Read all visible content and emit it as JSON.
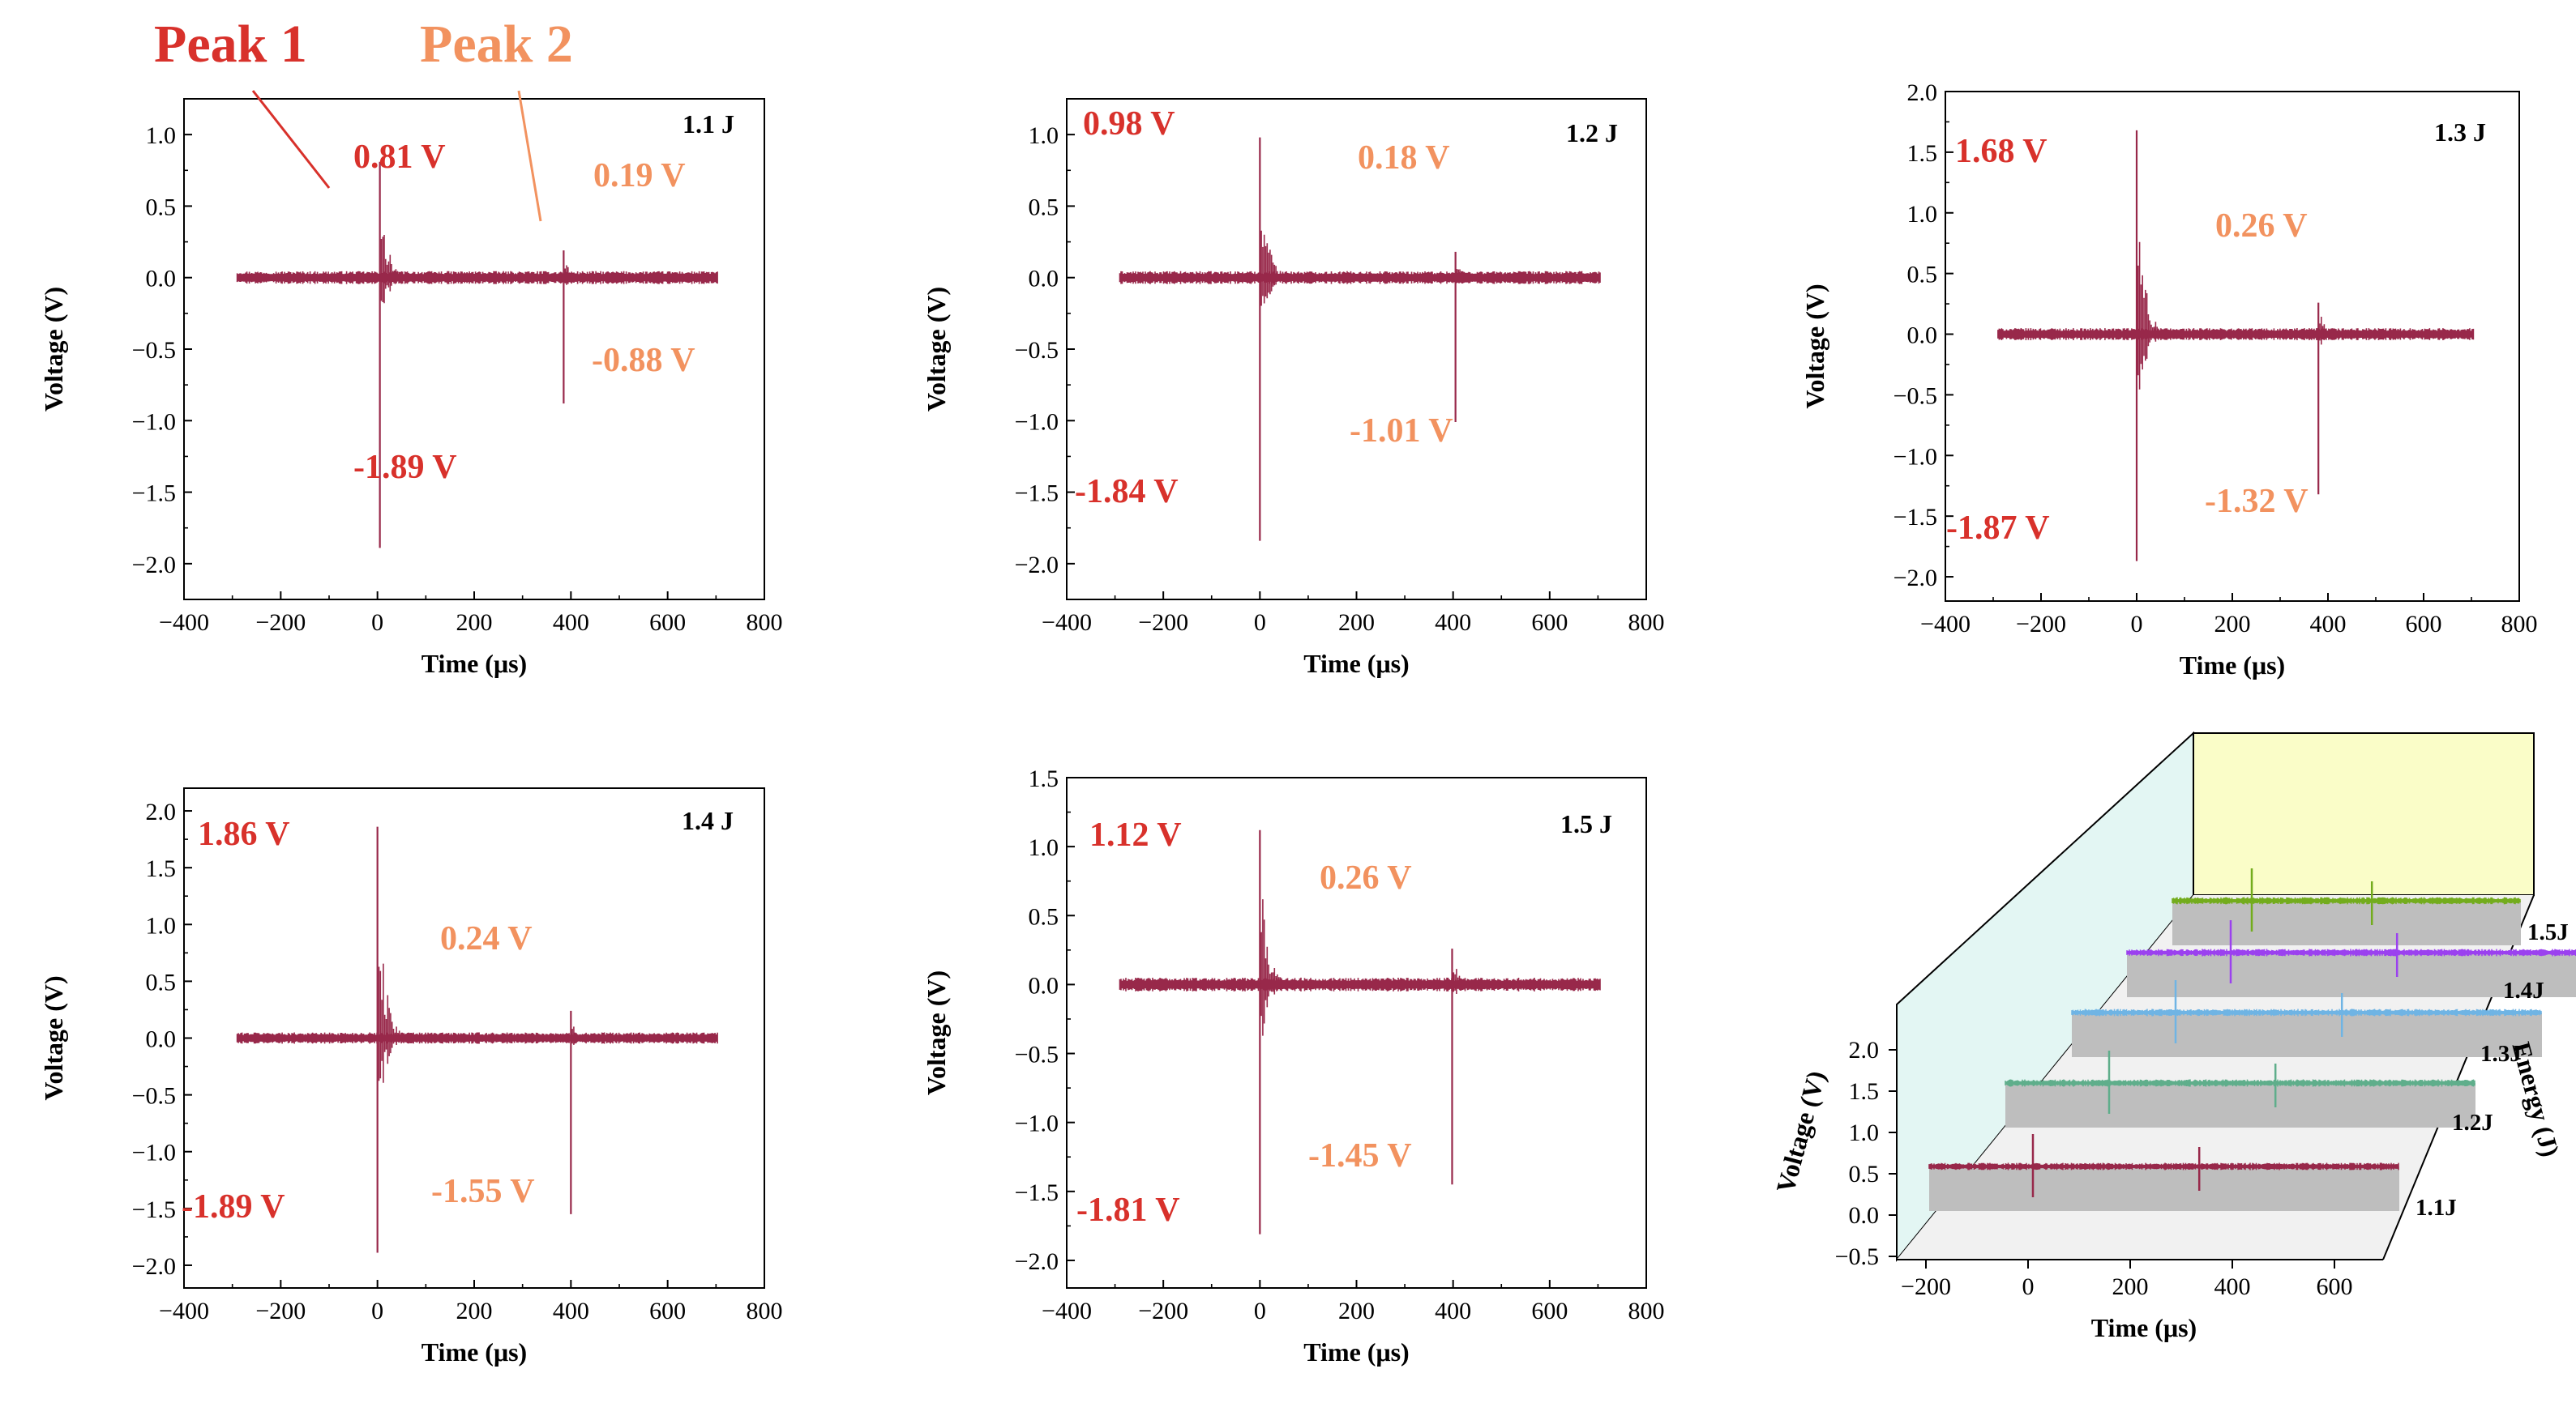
{
  "colors": {
    "signal": "#98284a",
    "peak1": "#d8312b",
    "peak2": "#f2925f",
    "axis": "#000000",
    "wall_left": "#e3f6f3",
    "wall_back": "#fafdc8",
    "floor": "#f1f1f1",
    "ribbon": "#bebebe",
    "series_3d": [
      "#98284a",
      "#5fae8b",
      "#6fb4e4",
      "#9b41ef",
      "#73ac1d"
    ]
  },
  "header": {
    "peak1_label": "Peak 1",
    "peak2_label": "Peak 2"
  },
  "chart_data": [
    {
      "type": "line",
      "title": "1.1 J",
      "xlabel": "Time (μs)",
      "ylabel": "Voltage (V)",
      "xlim": [
        -400,
        800
      ],
      "ylim": [
        -2.25,
        1.25
      ],
      "xticks": [
        -400,
        -200,
        0,
        200,
        400,
        600,
        800
      ],
      "yticks": [
        1.0,
        0.5,
        0.0,
        -0.5,
        -1.0,
        -1.5,
        -2.0
      ],
      "signal_time_range": [
        -290,
        705
      ],
      "noise_amplitude": 0.045,
      "peaks": [
        {
          "name": "Peak 1",
          "time": 5,
          "max": 0.81,
          "min": -1.89
        },
        {
          "name": "Peak 2",
          "time": 385,
          "max": 0.19,
          "min": -0.88
        }
      ],
      "labels": {
        "energy": "1.1 J",
        "peak1_max": "0.81 V",
        "peak1_min": "-1.89 V",
        "peak2_max": "0.19 V",
        "peak2_min": "-0.88 V"
      }
    },
    {
      "type": "line",
      "title": "1.2 J",
      "xlabel": "Time (μs)",
      "ylabel": "Voltage (V)",
      "xlim": [
        -400,
        800
      ],
      "ylim": [
        -2.25,
        1.25
      ],
      "xticks": [
        -400,
        -200,
        0,
        200,
        400,
        600,
        800
      ],
      "yticks": [
        1.0,
        0.5,
        0.0,
        -0.5,
        -1.0,
        -1.5,
        -2.0
      ],
      "signal_time_range": [
        -290,
        705
      ],
      "noise_amplitude": 0.045,
      "peaks": [
        {
          "name": "Peak 1",
          "time": 0,
          "max": 0.98,
          "min": -1.84
        },
        {
          "name": "Peak 2",
          "time": 405,
          "max": 0.18,
          "min": -1.01
        }
      ],
      "labels": {
        "energy": "1.2 J",
        "peak1_max": "0.98 V",
        "peak1_min": "-1.84 V",
        "peak2_max": "0.18 V",
        "peak2_min": "-1.01 V"
      }
    },
    {
      "type": "line",
      "title": "1.3 J",
      "xlabel": "Time (μs)",
      "ylabel": "Voltage (V)",
      "xlim": [
        -400,
        800
      ],
      "ylim": [
        -2.2,
        2.0
      ],
      "xticks": [
        -400,
        -200,
        0,
        200,
        400,
        600,
        800
      ],
      "yticks": [
        2.0,
        1.5,
        1.0,
        0.5,
        0.0,
        -0.5,
        -1.0,
        -1.5,
        -2.0
      ],
      "signal_time_range": [
        -290,
        705
      ],
      "noise_amplitude": 0.05,
      "peaks": [
        {
          "name": "Peak 1",
          "time": 0,
          "max": 1.68,
          "min": -1.87
        },
        {
          "name": "Peak 2",
          "time": 380,
          "max": 0.26,
          "min": -1.32
        }
      ],
      "labels": {
        "energy": "1.3 J",
        "peak1_max": "1.68 V",
        "peak1_min": "-1.87 V",
        "peak2_max": "0.26 V",
        "peak2_min": "-1.32 V"
      }
    },
    {
      "type": "line",
      "title": "1.4 J",
      "xlabel": "Time (μs)",
      "ylabel": "Voltage (V)",
      "xlim": [
        -400,
        800
      ],
      "ylim": [
        -2.2,
        2.2
      ],
      "xticks": [
        -400,
        -200,
        0,
        200,
        400,
        600,
        800
      ],
      "yticks": [
        2.0,
        1.5,
        1.0,
        0.5,
        0.0,
        -0.5,
        -1.0,
        -1.5,
        -2.0
      ],
      "signal_time_range": [
        -290,
        705
      ],
      "noise_amplitude": 0.05,
      "peaks": [
        {
          "name": "Peak 1",
          "time": 0,
          "max": 1.86,
          "min": -1.89
        },
        {
          "name": "Peak 2",
          "time": 400,
          "max": 0.24,
          "min": -1.55
        }
      ],
      "labels": {
        "energy": "1.4 J",
        "peak1_max": "1.86 V",
        "peak1_min": "-1.89 V",
        "peak2_max": "0.24 V",
        "peak2_min": "-1.55 V"
      }
    },
    {
      "type": "line",
      "title": "1.5 J",
      "xlabel": "Time (μs)",
      "ylabel": "Voltage (V)",
      "xlim": [
        -400,
        800
      ],
      "ylim": [
        -2.2,
        1.5
      ],
      "xticks": [
        -400,
        -200,
        0,
        200,
        400,
        600,
        800
      ],
      "yticks": [
        1.5,
        1.0,
        0.5,
        0.0,
        -0.5,
        -1.0,
        -1.5,
        -2.0
      ],
      "signal_time_range": [
        -290,
        705
      ],
      "noise_amplitude": 0.05,
      "peaks": [
        {
          "name": "Peak 1",
          "time": 0,
          "max": 1.12,
          "min": -1.81
        },
        {
          "name": "Peak 2",
          "time": 398,
          "max": 0.26,
          "min": -1.45
        }
      ],
      "labels": {
        "energy": "1.5 J",
        "peak1_max": "1.12 V",
        "peak1_min": "-1.81 V",
        "peak2_max": "0.26 V",
        "peak2_min": "-1.45 V"
      }
    },
    {
      "type": "line",
      "subtype": "3d-waterfall",
      "xlabel": "Time (μs)",
      "ylabel": "Voltage (V)",
      "zlabel": "Energy (J)",
      "xticks": [
        -200,
        0,
        200,
        400,
        600
      ],
      "yticks": [
        2.0,
        1.5,
        1.0,
        0.5,
        0.0,
        -0.5
      ],
      "series": [
        {
          "name": "1.1J",
          "peak_times": [
            0,
            380
          ]
        },
        {
          "name": "1.2J",
          "peak_times": [
            0,
            380
          ]
        },
        {
          "name": "1.3J",
          "peak_times": [
            0,
            380
          ]
        },
        {
          "name": "1.4J",
          "peak_times": [
            0,
            380
          ]
        },
        {
          "name": "1.5J",
          "peak_times": [
            0,
            380
          ]
        }
      ]
    }
  ]
}
